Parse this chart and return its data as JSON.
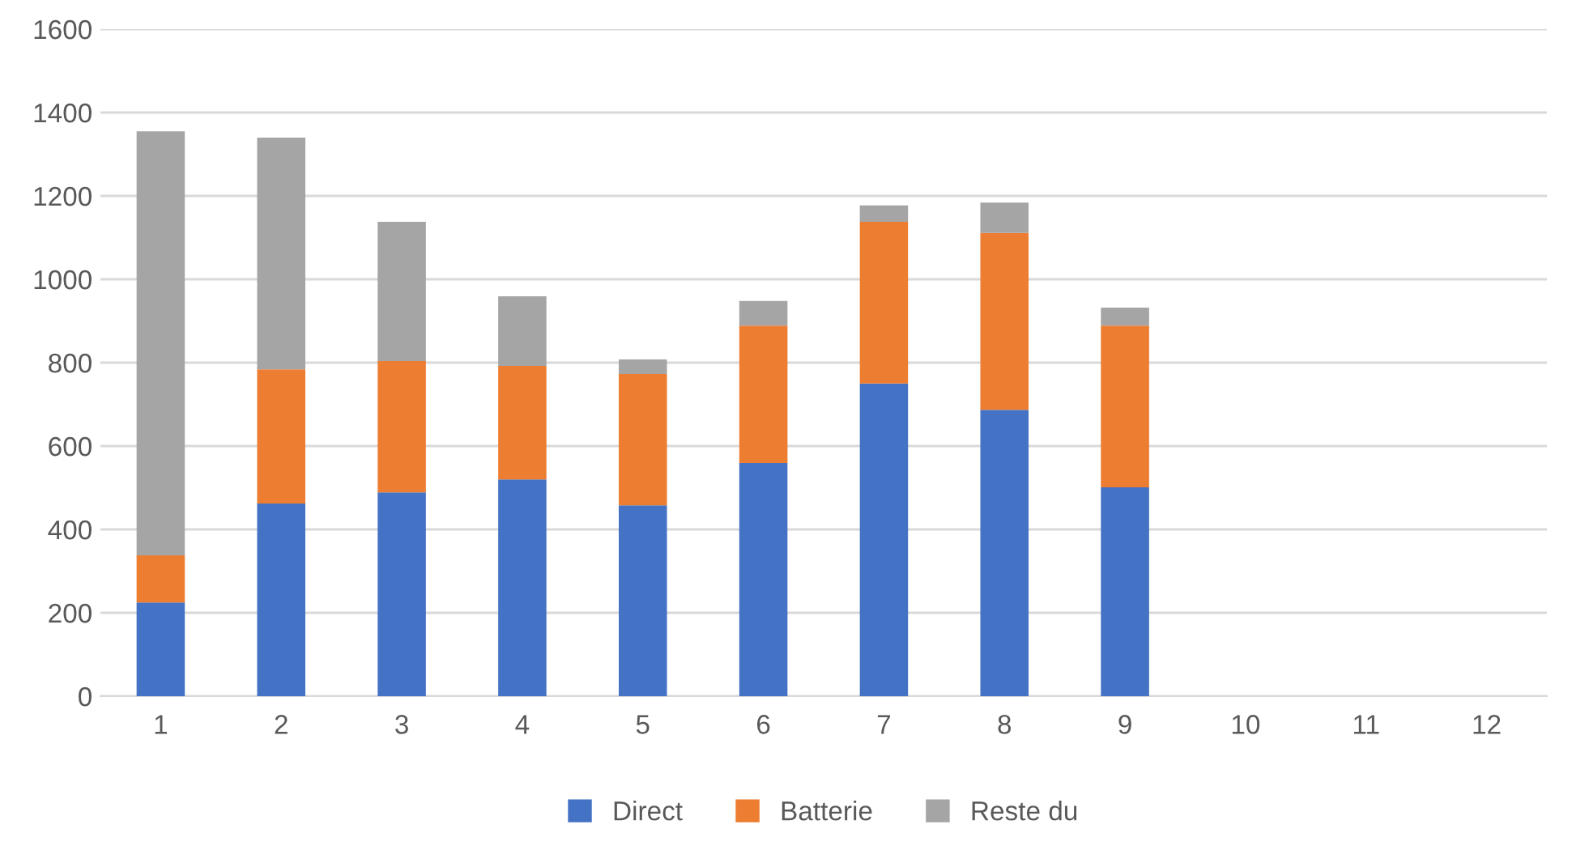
{
  "chart_data": {
    "type": "bar",
    "stacked": true,
    "categories": [
      "1",
      "2",
      "3",
      "4",
      "5",
      "6",
      "7",
      "8",
      "9",
      "10",
      "11",
      "12"
    ],
    "series": [
      {
        "name": "Direct",
        "color": "#4472c4",
        "values": [
          225,
          462,
          489,
          520,
          458,
          559,
          750,
          687,
          501,
          null,
          null,
          null
        ]
      },
      {
        "name": "Batterie",
        "color": "#ed7d31",
        "values": [
          113,
          322,
          315,
          272,
          315,
          330,
          388,
          424,
          388,
          null,
          null,
          null
        ]
      },
      {
        "name": "Reste du",
        "color": "#a5a5a5",
        "values": [
          1017,
          556,
          334,
          167,
          35,
          59,
          39,
          73,
          43,
          null,
          null,
          null
        ]
      }
    ],
    "ylim": [
      0,
      1600
    ],
    "yticks": [
      0,
      200,
      400,
      600,
      800,
      1000,
      1200,
      1400,
      1600
    ],
    "grid": "y",
    "legend": "bottom"
  }
}
